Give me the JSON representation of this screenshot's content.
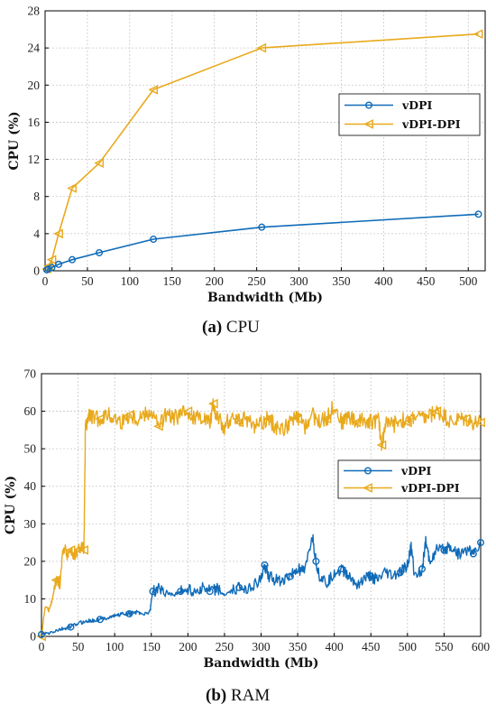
{
  "colors": {
    "vdpi": "#0f6bb8",
    "vdpi_dpi": "#e8a91c",
    "grid": "#c8c8c8",
    "axis": "#000000"
  },
  "chart_data": [
    {
      "type": "line",
      "caption_letter": "(a)",
      "caption_text": "CPU",
      "xlabel": "Bandwidth (Mb)",
      "ylabel": "CPU (%)",
      "xlim": [
        0,
        520
      ],
      "ylim": [
        0,
        28
      ],
      "xticks": [
        0,
        50,
        100,
        150,
        200,
        250,
        300,
        350,
        400,
        450,
        500
      ],
      "yticks": [
        0,
        4,
        8,
        12,
        16,
        20,
        24,
        28
      ],
      "grid": true,
      "legend": "center-right",
      "series": [
        {
          "name": "vDPI",
          "marker": "circle",
          "x": [
            2,
            4,
            8,
            16,
            32,
            64,
            128,
            256,
            512
          ],
          "y": [
            0.1,
            0.2,
            0.35,
            0.7,
            1.2,
            1.95,
            3.4,
            4.7,
            6.1
          ]
        },
        {
          "name": "vDPI-DPI",
          "marker": "triangle-left",
          "x": [
            2,
            4,
            8,
            16,
            32,
            64,
            128,
            256,
            512
          ],
          "y": [
            0.2,
            0.5,
            1.2,
            4.0,
            8.9,
            11.6,
            19.5,
            24.0,
            25.5
          ]
        }
      ]
    },
    {
      "type": "line",
      "caption_letter": "(b)",
      "caption_text": "RAM",
      "xlabel": "Bandwidth (Mb)",
      "ylabel": "CPU (%)",
      "xlim": [
        0,
        600
      ],
      "ylim": [
        0,
        70
      ],
      "xticks": [
        0,
        50,
        100,
        150,
        200,
        250,
        300,
        350,
        400,
        450,
        500,
        550,
        600
      ],
      "yticks": [
        0,
        10,
        20,
        30,
        40,
        50,
        60,
        70
      ],
      "grid": true,
      "legend": "center-right",
      "series": [
        {
          "name": "vDPI",
          "marker": "circle",
          "x": [
            0,
            10,
            20,
            30,
            40,
            50,
            60,
            70,
            80,
            90,
            100,
            110,
            120,
            130,
            140,
            148,
            152,
            160,
            170,
            180,
            190,
            200,
            210,
            220,
            230,
            240,
            250,
            260,
            270,
            280,
            290,
            300,
            305,
            310,
            320,
            330,
            340,
            350,
            360,
            370,
            375,
            380,
            390,
            400,
            410,
            420,
            430,
            440,
            450,
            460,
            470,
            480,
            490,
            500,
            505,
            510,
            520,
            525,
            530,
            540,
            550,
            560,
            570,
            580,
            590,
            600
          ],
          "y": [
            0.5,
            0.8,
            1.5,
            2,
            2.5,
            3.5,
            4,
            4.2,
            4.5,
            5,
            5.5,
            6,
            6,
            6.5,
            6,
            6.5,
            12,
            12.5,
            12,
            11,
            12,
            12.5,
            12,
            13,
            12,
            12.5,
            11,
            12,
            13,
            13,
            13.5,
            15,
            19,
            16,
            15,
            15,
            16,
            18,
            17,
            27,
            20,
            16,
            14,
            17,
            18,
            16,
            14,
            15,
            16,
            15,
            17,
            16,
            17,
            19,
            24,
            16,
            18,
            25,
            20,
            23,
            23,
            24,
            22,
            23,
            22,
            25
          ]
        },
        {
          "name": "vDPI-DPI",
          "marker": "triangle-left",
          "x": [
            0,
            5,
            10,
            15,
            20,
            25,
            30,
            35,
            40,
            45,
            50,
            55,
            58,
            60,
            65,
            70,
            80,
            90,
            100,
            110,
            120,
            130,
            140,
            150,
            160,
            170,
            180,
            190,
            200,
            210,
            220,
            230,
            235,
            240,
            250,
            260,
            270,
            280,
            290,
            300,
            310,
            320,
            330,
            340,
            350,
            360,
            370,
            380,
            390,
            400,
            410,
            420,
            430,
            440,
            450,
            460,
            465,
            470,
            480,
            490,
            500,
            510,
            520,
            530,
            540,
            550,
            560,
            570,
            580,
            590,
            600
          ],
          "y": [
            0,
            8,
            7,
            10,
            15,
            14,
            24,
            22,
            23,
            21,
            23,
            24,
            23,
            55,
            59,
            58,
            58,
            59,
            58,
            57,
            59,
            58,
            59,
            60,
            56,
            59,
            58,
            59,
            60,
            58,
            59,
            57,
            62,
            58,
            56,
            59,
            57,
            58,
            56,
            57,
            58,
            56,
            55,
            57,
            58,
            56,
            59,
            57,
            58,
            62,
            57,
            59,
            57,
            58,
            57,
            58,
            51,
            57,
            56,
            58,
            57,
            59,
            58,
            59,
            60,
            59,
            57,
            58,
            58,
            57,
            57
          ]
        }
      ]
    }
  ]
}
